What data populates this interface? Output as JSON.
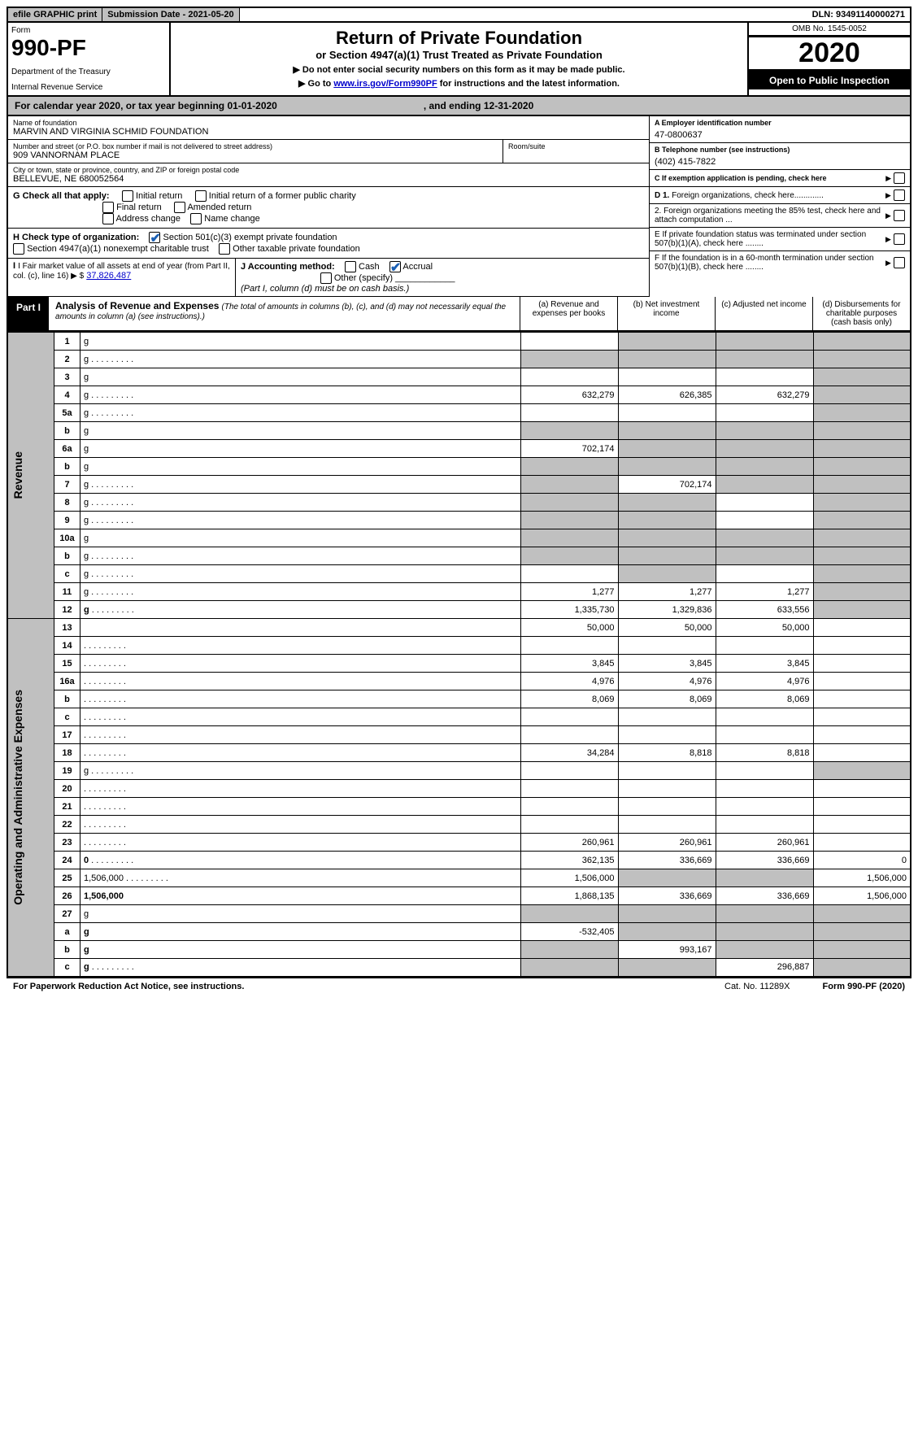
{
  "topbar": {
    "efile": "efile GRAPHIC print",
    "subdate_label": "Submission Date - ",
    "subdate": "2021-05-20",
    "dln_label": "DLN: ",
    "dln": "93491140000271"
  },
  "header": {
    "form_label": "Form",
    "form_no": "990-PF",
    "dept1": "Department of the Treasury",
    "dept2": "Internal Revenue Service",
    "title": "Return of Private Foundation",
    "subtitle": "or Section 4947(a)(1) Trust Treated as Private Foundation",
    "note1": "▶ Do not enter social security numbers on this form as it may be made public.",
    "note2_pre": "▶ Go to ",
    "note2_link": "www.irs.gov/Form990PF",
    "note2_post": " for instructions and the latest information.",
    "omb": "OMB No. 1545-0052",
    "year": "2020",
    "open": "Open to Public Inspection"
  },
  "calendar": {
    "pre": "For calendar year 2020, or tax year beginning ",
    "begin": "01-01-2020",
    "mid": ", and ending ",
    "end": "12-31-2020"
  },
  "info": {
    "name_lbl": "Name of foundation",
    "name": "MARVIN AND VIRGINIA SCHMID FOUNDATION",
    "addr_lbl": "Number and street (or P.O. box number if mail is not delivered to street address)",
    "addr": "909 VANNORNAM PLACE",
    "room_lbl": "Room/suite",
    "city_lbl": "City or town, state or province, country, and ZIP or foreign postal code",
    "city": "BELLEVUE, NE  680052564",
    "a_lbl": "A Employer identification number",
    "a_val": "47-0800637",
    "b_lbl": "B Telephone number (see instructions)",
    "b_val": "(402) 415-7822",
    "c_lbl": "C If exemption application is pending, check here",
    "d1": "D 1. Foreign organizations, check here.............",
    "d2": "2. Foreign organizations meeting the 85% test, check here and attach computation ...",
    "e": "E  If private foundation status was terminated under section 507(b)(1)(A), check here ........",
    "f": "F  If the foundation is in a 60-month termination under section 507(b)(1)(B), check here ........"
  },
  "g": {
    "label": "G Check all that apply:",
    "opts": [
      "Initial return",
      "Initial return of a former public charity",
      "Final return",
      "Amended return",
      "Address change",
      "Name change"
    ]
  },
  "h": {
    "label": "H Check type of organization:",
    "opt1": "Section 501(c)(3) exempt private foundation",
    "opt2": "Section 4947(a)(1) nonexempt charitable trust",
    "opt3": "Other taxable private foundation"
  },
  "i": {
    "label": "I Fair market value of all assets at end of year (from Part II, col. (c), line 16) ▶ $",
    "val": "37,826,487"
  },
  "j": {
    "label": "J Accounting method:",
    "cash": "Cash",
    "accrual": "Accrual",
    "other": "Other (specify)",
    "note": "(Part I, column (d) must be on cash basis.)"
  },
  "part1": {
    "tag": "Part I",
    "title": "Analysis of Revenue and Expenses",
    "note": "(The total of amounts in columns (b), (c), and (d) may not necessarily equal the amounts in column (a) (see instructions).)",
    "cols": {
      "a": "(a)   Revenue and expenses per books",
      "b": "(b)  Net investment income",
      "c": "(c)  Adjusted net income",
      "d": "(d)  Disbursements for charitable purposes (cash basis only)"
    }
  },
  "sides": {
    "rev": "Revenue",
    "exp": "Operating and Administrative Expenses"
  },
  "rows": [
    {
      "n": "1",
      "d": "g",
      "a": "",
      "b": "g",
      "c": "g"
    },
    {
      "n": "2",
      "d": "g",
      "dots": true,
      "a": "g",
      "b": "g",
      "c": "g"
    },
    {
      "n": "3",
      "d": "g",
      "a": "",
      "b": "",
      "c": ""
    },
    {
      "n": "4",
      "d": "g",
      "dots": true,
      "a": "632,279",
      "b": "626,385",
      "c": "632,279"
    },
    {
      "n": "5a",
      "d": "g",
      "dots": true,
      "a": "",
      "b": "",
      "c": ""
    },
    {
      "n": "b",
      "d": "g",
      "a": "g",
      "b": "g",
      "c": "g"
    },
    {
      "n": "6a",
      "d": "g",
      "a": "702,174",
      "b": "g",
      "c": "g"
    },
    {
      "n": "b",
      "d": "g",
      "a": "g",
      "b": "g",
      "c": "g"
    },
    {
      "n": "7",
      "d": "g",
      "dots": true,
      "a": "g",
      "b": "702,174",
      "c": "g"
    },
    {
      "n": "8",
      "d": "g",
      "dots": true,
      "a": "g",
      "b": "g",
      "c": ""
    },
    {
      "n": "9",
      "d": "g",
      "dots": true,
      "a": "g",
      "b": "g",
      "c": ""
    },
    {
      "n": "10a",
      "d": "g",
      "a": "g",
      "b": "g",
      "c": "g"
    },
    {
      "n": "b",
      "d": "g",
      "dots": true,
      "extra": "____",
      "a": "g",
      "b": "g",
      "c": "g"
    },
    {
      "n": "c",
      "d": "g",
      "dots": true,
      "a": "",
      "b": "g",
      "c": ""
    },
    {
      "n": "11",
      "d": "g",
      "dots": true,
      "a": "1,277",
      "b": "1,277",
      "c": "1,277"
    },
    {
      "n": "12",
      "d": "g",
      "bold": true,
      "dots": true,
      "a": "1,335,730",
      "b": "1,329,836",
      "c": "633,556"
    },
    {
      "n": "13",
      "d": "",
      "a": "50,000",
      "b": "50,000",
      "c": "50,000"
    },
    {
      "n": "14",
      "d": "",
      "dots": true,
      "a": "",
      "b": "",
      "c": ""
    },
    {
      "n": "15",
      "d": "",
      "dots": true,
      "a": "3,845",
      "b": "3,845",
      "c": "3,845"
    },
    {
      "n": "16a",
      "d": "",
      "dots": true,
      "a": "4,976",
      "b": "4,976",
      "c": "4,976"
    },
    {
      "n": "b",
      "d": "",
      "dots": true,
      "a": "8,069",
      "b": "8,069",
      "c": "8,069"
    },
    {
      "n": "c",
      "d": "",
      "dots": true,
      "a": "",
      "b": "",
      "c": ""
    },
    {
      "n": "17",
      "d": "",
      "dots": true,
      "a": "",
      "b": "",
      "c": ""
    },
    {
      "n": "18",
      "d": "",
      "dots": true,
      "a": "34,284",
      "b": "8,818",
      "c": "8,818"
    },
    {
      "n": "19",
      "d": "g",
      "dots": true,
      "a": "",
      "b": "",
      "c": ""
    },
    {
      "n": "20",
      "d": "",
      "dots": true,
      "a": "",
      "b": "",
      "c": ""
    },
    {
      "n": "21",
      "d": "",
      "dots": true,
      "a": "",
      "b": "",
      "c": ""
    },
    {
      "n": "22",
      "d": "",
      "dots": true,
      "a": "",
      "b": "",
      "c": ""
    },
    {
      "n": "23",
      "d": "",
      "dots": true,
      "a": "260,961",
      "b": "260,961",
      "c": "260,961"
    },
    {
      "n": "24",
      "d": "0",
      "bold": true,
      "dots": true,
      "a": "362,135",
      "b": "336,669",
      "c": "336,669"
    },
    {
      "n": "25",
      "d": "1,506,000",
      "dots": true,
      "a": "1,506,000",
      "b": "g",
      "c": "g"
    },
    {
      "n": "26",
      "d": "1,506,000",
      "bold": true,
      "a": "1,868,135",
      "b": "336,669",
      "c": "336,669"
    },
    {
      "n": "27",
      "d": "g",
      "a": "g",
      "b": "g",
      "c": "g"
    },
    {
      "n": "a",
      "d": "g",
      "bold": true,
      "a": "-532,405",
      "b": "g",
      "c": "g"
    },
    {
      "n": "b",
      "d": "g",
      "bold": true,
      "a": "g",
      "b": "993,167",
      "c": "g"
    },
    {
      "n": "c",
      "d": "g",
      "bold": true,
      "dots": true,
      "a": "g",
      "b": "g",
      "c": "296,887"
    }
  ],
  "footer": {
    "left": "For Paperwork Reduction Act Notice, see instructions.",
    "cat": "Cat. No. 11289X",
    "right": "Form 990-PF (2020)"
  }
}
